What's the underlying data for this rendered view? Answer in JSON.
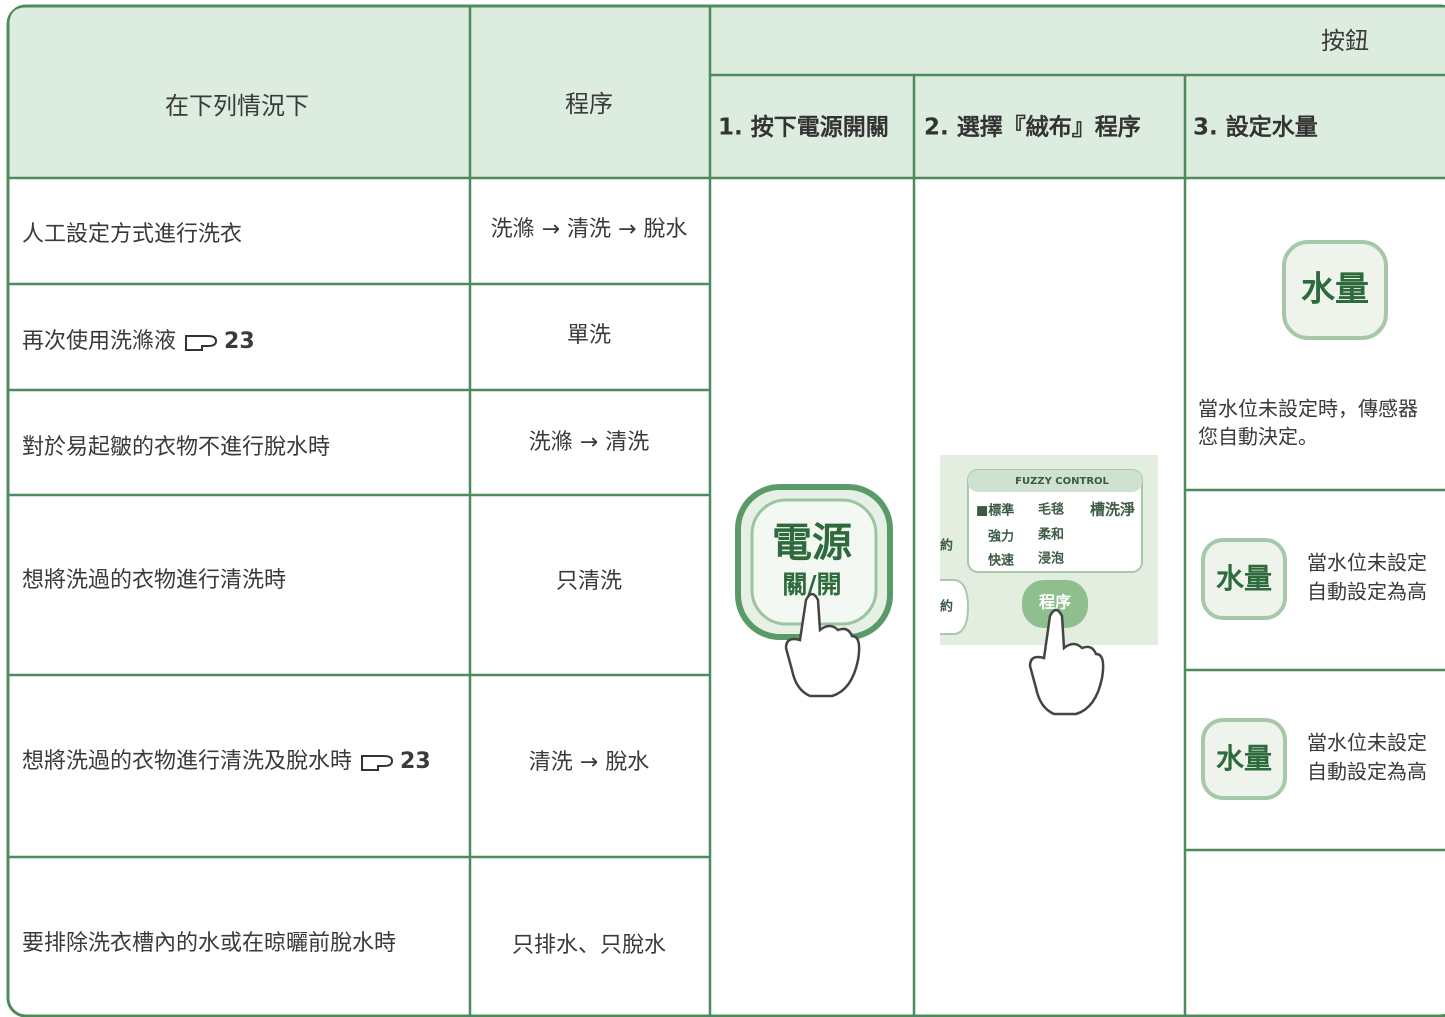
{
  "header": {
    "situation": "在下列情況下",
    "program": "程序",
    "buttons": "按鈕",
    "steps": [
      "1. 按下電源開關",
      "2. 選擇『絨布』程序",
      "3. 設定水量"
    ]
  },
  "rows": [
    {
      "situation": "人工設定方式進行洗衣",
      "program": "洗滌 → 清洗 → 脫水"
    },
    {
      "situation": "再次使用洗滌液",
      "ref": "23",
      "program": "單洗"
    },
    {
      "situation": "對於易起皺的衣物不進行脫水時",
      "program": "洗滌 → 清洗"
    },
    {
      "situation": "想將洗過的衣物進行清洗時",
      "program": "只清洗"
    },
    {
      "situation": "想將洗過的衣物進行清洗及脫水時",
      "ref": "23",
      "program": "清洗 → 脫水"
    },
    {
      "situation": "要排除洗衣槽內的水或在晾曬前脫水時",
      "program": "只排水、只脫水"
    }
  ],
  "power_button": {
    "label": "電源",
    "sub": "關/開"
  },
  "control_panel": {
    "brand": "FUZZY CONTROL",
    "programs": [
      "■標準",
      "毛毯",
      "槽洗淨",
      "強力",
      "柔和",
      "快速",
      "浸泡"
    ],
    "side": [
      "約",
      "約"
    ],
    "button": "程序"
  },
  "water": [
    {
      "button": "水量",
      "note": [
        "當水位未設定時，傳感器",
        "您自動決定。"
      ]
    },
    {
      "button": "水量",
      "note": [
        "當水位未設定",
        "自動設定為高"
      ]
    },
    {
      "button": "水量",
      "note": [
        "當水位未設定",
        "自動設定為高"
      ]
    }
  ]
}
